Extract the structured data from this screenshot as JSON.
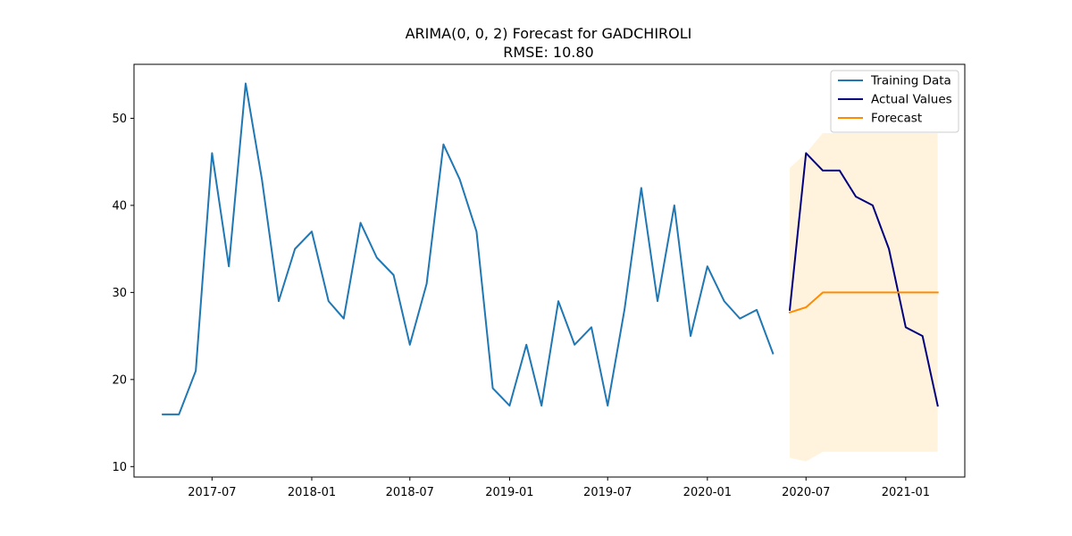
{
  "chart_data": {
    "type": "line",
    "title": "ARIMA(0, 0, 2) Forecast for GADCHIROLI",
    "subtitle": "RMSE: 10.80",
    "xlabel": "",
    "ylabel": "",
    "x_type": "date",
    "xlim": [
      "2017-02-07",
      "2021-04-20"
    ],
    "ylim": [
      8.8,
      56.2
    ],
    "x_ticks": [
      "2017-07",
      "2018-01",
      "2018-07",
      "2019-01",
      "2019-07",
      "2020-01",
      "2020-07",
      "2021-01"
    ],
    "y_ticks": [
      10,
      20,
      30,
      40,
      50
    ],
    "grid": false,
    "legend_position": "top-right",
    "series": [
      {
        "name": "Training Data",
        "color": "#1f77b4",
        "x": [
          "2017-04",
          "2017-05",
          "2017-06",
          "2017-07",
          "2017-08",
          "2017-09",
          "2017-10",
          "2017-11",
          "2017-12",
          "2018-01",
          "2018-02",
          "2018-03",
          "2018-04",
          "2018-05",
          "2018-06",
          "2018-07",
          "2018-08",
          "2018-09",
          "2018-10",
          "2018-11",
          "2018-12",
          "2019-01",
          "2019-02",
          "2019-03",
          "2019-04",
          "2019-05",
          "2019-06",
          "2019-07",
          "2019-08",
          "2019-09",
          "2019-10",
          "2019-11",
          "2019-12",
          "2020-01",
          "2020-02",
          "2020-03",
          "2020-04",
          "2020-05"
        ],
        "y": [
          16,
          16,
          21,
          46,
          33,
          54,
          43,
          29,
          35,
          37,
          29,
          27,
          38,
          34,
          32,
          24,
          31,
          47,
          43,
          37,
          19,
          17,
          24,
          17,
          29,
          24,
          26,
          17,
          28,
          42,
          29,
          40,
          25,
          33,
          29,
          27,
          28,
          23
        ]
      },
      {
        "name": "Actual Values",
        "color": "#000080",
        "x": [
          "2020-06",
          "2020-07",
          "2020-08",
          "2020-09",
          "2020-10",
          "2020-11",
          "2020-12",
          "2021-01",
          "2021-02",
          "2021-03"
        ],
        "y": [
          28,
          46,
          44,
          44,
          41,
          40,
          35,
          26,
          25,
          17
        ]
      },
      {
        "name": "Forecast",
        "color": "#ff8c00",
        "x": [
          "2020-06",
          "2020-07",
          "2020-08",
          "2020-09",
          "2020-10",
          "2020-11",
          "2020-12",
          "2021-01",
          "2021-02",
          "2021-03"
        ],
        "y": [
          27.7,
          28.3,
          30,
          30,
          30,
          30,
          30,
          30,
          30,
          30
        ]
      }
    ],
    "confidence_interval": {
      "color": "#ffe5b4",
      "x": [
        "2020-06",
        "2020-07",
        "2020-08",
        "2020-09",
        "2020-10",
        "2020-11",
        "2020-12",
        "2021-01",
        "2021-02",
        "2021-03"
      ],
      "lower": [
        11,
        10.6,
        11.7,
        11.7,
        11.7,
        11.7,
        11.7,
        11.7,
        11.7,
        11.7
      ],
      "upper": [
        44.3,
        46,
        48.3,
        48.3,
        48.3,
        48.3,
        48.3,
        48.3,
        48.3,
        48.3
      ]
    }
  }
}
